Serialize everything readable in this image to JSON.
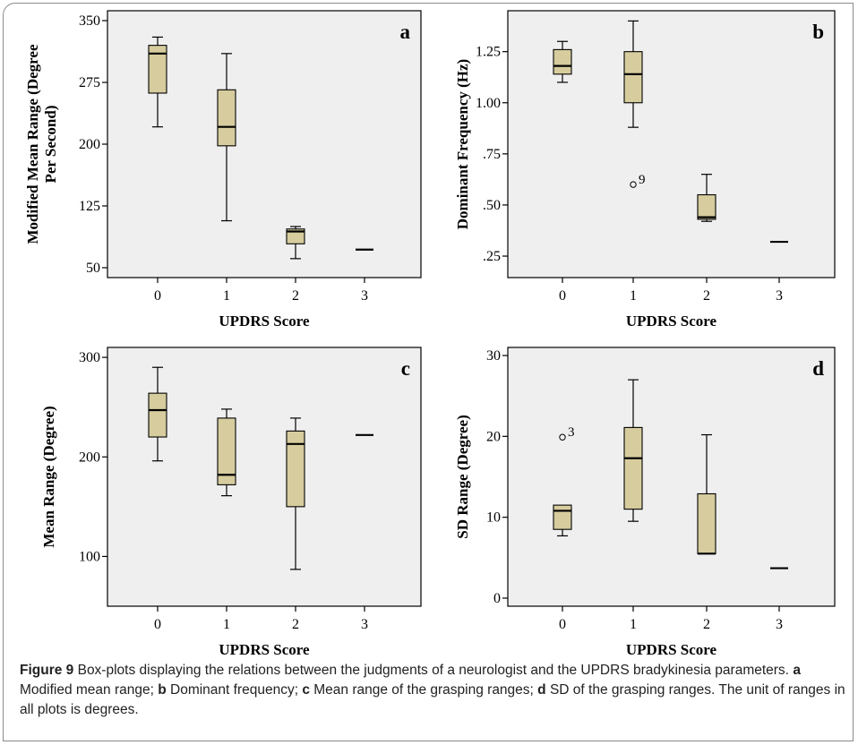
{
  "figure": {
    "caption_label": "Figure 9",
    "caption_parts": [
      {
        "text": "  Box-plots displaying the relations between the judgments of a neurologist and the UPDRS bradyki­nesia parameters. ",
        "bold": false
      },
      {
        "text": "a",
        "bold": true
      },
      {
        "text": " Modified mean range; ",
        "bold": false
      },
      {
        "text": "b",
        "bold": true
      },
      {
        "text": " Dominant frequency; ",
        "bold": false
      },
      {
        "text": "c",
        "bold": true
      },
      {
        "text": " Mean range of the grasping ranges; ",
        "bold": false
      },
      {
        "text": "d",
        "bold": true
      },
      {
        "text": " SD of the grasping ranges. The unit of ranges in all plots is degrees.",
        "bold": false
      }
    ]
  },
  "colors": {
    "plot_bg": "#efefef",
    "box_fill": "#d6cc9e",
    "stroke": "#000000"
  },
  "chart_data": [
    {
      "type": "box",
      "panel_label": "a",
      "xlabel": "UPDRS Score",
      "ylabel_lines": [
        "Modified Mean Range (Degree",
        "Per Second)"
      ],
      "categories": [
        "0",
        "1",
        "2",
        "3"
      ],
      "ylim": [
        38,
        362
      ],
      "yticks": [
        {
          "v": 50,
          "label": "50"
        },
        {
          "v": 125,
          "label": "125"
        },
        {
          "v": 200,
          "label": "200"
        },
        {
          "v": 275,
          "label": "275"
        },
        {
          "v": 350,
          "label": "350"
        }
      ],
      "boxes": [
        {
          "min": 221,
          "q1": 262,
          "median": 310,
          "q3": 320,
          "max": 330
        },
        {
          "min": 107,
          "q1": 198,
          "median": 221,
          "q3": 266,
          "max": 310
        },
        {
          "min": 61,
          "q1": 79,
          "median": 94,
          "q3": 97,
          "max": 100
        },
        {
          "min": 72,
          "q1": 72,
          "median": 72,
          "q3": 72,
          "max": 72
        }
      ],
      "outliers": []
    },
    {
      "type": "box",
      "panel_label": "b",
      "xlabel": "UPDRS Score",
      "ylabel_lines": [
        "Dominant Frequency (Hz)"
      ],
      "categories": [
        "0",
        "1",
        "2",
        "3"
      ],
      "ylim": [
        0.145,
        1.45
      ],
      "yticks": [
        {
          "v": 0.25,
          "label": ".25"
        },
        {
          "v": 0.5,
          "label": ".50"
        },
        {
          "v": 0.75,
          "label": ".75"
        },
        {
          "v": 1.0,
          "label": "1.00"
        },
        {
          "v": 1.25,
          "label": "1.25"
        }
      ],
      "boxes": [
        {
          "min": 1.1,
          "q1": 1.14,
          "median": 1.18,
          "q3": 1.26,
          "max": 1.3
        },
        {
          "min": 0.88,
          "q1": 1.0,
          "median": 1.14,
          "q3": 1.25,
          "max": 1.4
        },
        {
          "min": 0.42,
          "q1": 0.43,
          "median": 0.44,
          "q3": 0.55,
          "max": 0.65
        },
        {
          "min": 0.32,
          "q1": 0.32,
          "median": 0.32,
          "q3": 0.32,
          "max": 0.32
        }
      ],
      "outliers": [
        {
          "category": "1",
          "value": 0.6,
          "label": "9"
        }
      ]
    },
    {
      "type": "box",
      "panel_label": "c",
      "xlabel": "UPDRS Score",
      "ylabel_lines": [
        "Mean Range (Degree)"
      ],
      "categories": [
        "0",
        "1",
        "2",
        "3"
      ],
      "ylim": [
        50,
        310
      ],
      "yticks": [
        {
          "v": 100,
          "label": "100"
        },
        {
          "v": 200,
          "label": "200"
        },
        {
          "v": 300,
          "label": "300"
        }
      ],
      "boxes": [
        {
          "min": 196,
          "q1": 220,
          "median": 247,
          "q3": 264,
          "max": 290
        },
        {
          "min": 161,
          "q1": 172,
          "median": 182,
          "q3": 239,
          "max": 248
        },
        {
          "min": 87,
          "q1": 150,
          "median": 213,
          "q3": 226,
          "max": 239
        },
        {
          "min": 222,
          "q1": 222,
          "median": 222,
          "q3": 222,
          "max": 222
        }
      ],
      "outliers": []
    },
    {
      "type": "box",
      "panel_label": "d",
      "xlabel": "UPDRS Score",
      "ylabel_lines": [
        "SD Range (Degree)"
      ],
      "categories": [
        "0",
        "1",
        "2",
        "3"
      ],
      "ylim": [
        -1.0,
        31.0
      ],
      "yticks": [
        {
          "v": 0,
          "label": "0"
        },
        {
          "v": 10,
          "label": "10"
        },
        {
          "v": 20,
          "label": "20"
        },
        {
          "v": 30,
          "label": "30"
        }
      ],
      "boxes": [
        {
          "min": 7.7,
          "q1": 8.5,
          "median": 10.8,
          "q3": 11.5,
          "max": 11.5
        },
        {
          "min": 9.5,
          "q1": 11.0,
          "median": 17.3,
          "q3": 21.1,
          "max": 27.0
        },
        {
          "min": 5.5,
          "q1": 5.5,
          "median": 5.5,
          "q3": 12.9,
          "max": 20.2
        },
        {
          "min": 3.7,
          "q1": 3.7,
          "median": 3.7,
          "q3": 3.7,
          "max": 3.7
        }
      ],
      "outliers": [
        {
          "category": "0",
          "value": 19.9,
          "label": "3"
        }
      ]
    }
  ]
}
